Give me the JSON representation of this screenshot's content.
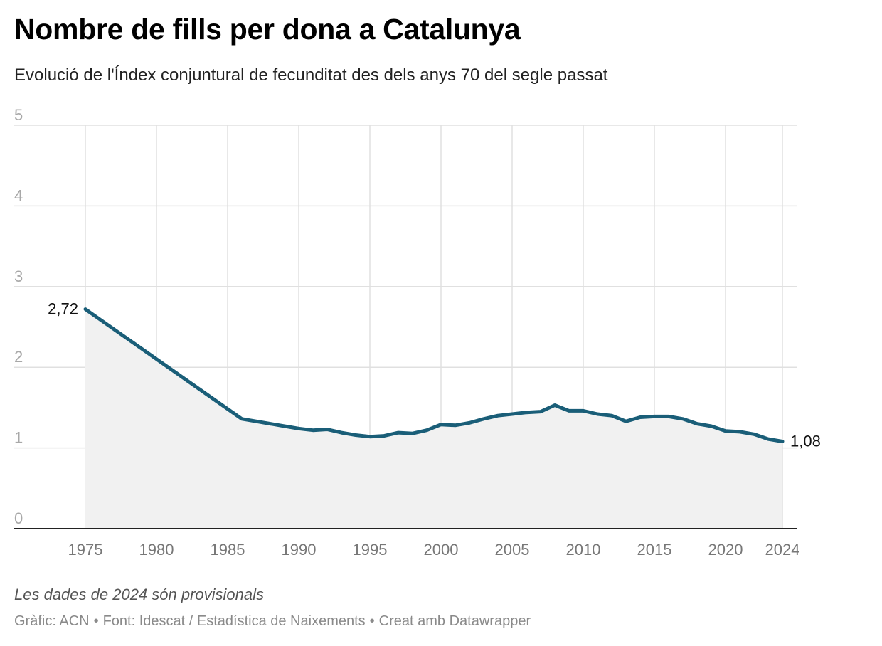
{
  "header": {
    "title": "Nombre de fills per dona a Catalunya",
    "subtitle": "Evolució de l'Índex conjuntural de fecunditat des dels anys 70 del segle passat"
  },
  "footer": {
    "note": "Les dades de 2024 són provisionals",
    "credit": "Gràfic: ACN",
    "source": "Font: Idescat / Estadística de Naixements",
    "tool": "Creat amb Datawrapper",
    "separator": "•"
  },
  "colors": {
    "line": "#1a5e78",
    "area": "#f1f1f1",
    "grid": "#e0e0e0",
    "axis": "#222222",
    "tick_label": "#a8a8a8",
    "x_tick_label": "#777777",
    "data_label": "#111111"
  },
  "chart_data": {
    "type": "area",
    "title": "",
    "xlabel": "",
    "ylabel": "",
    "xlim": [
      1975,
      2024
    ],
    "ylim": [
      0,
      5
    ],
    "grid": true,
    "y_ticks": [
      0,
      1,
      2,
      3,
      4,
      5
    ],
    "y_tick_labels": [
      "0",
      "1",
      "2",
      "3",
      "4",
      "5"
    ],
    "x_ticks": [
      1975,
      1980,
      1985,
      1990,
      1995,
      2000,
      2005,
      2010,
      2015,
      2020,
      2024
    ],
    "x_tick_labels": [
      "1975",
      "1980",
      "1985",
      "1990",
      "1995",
      "2000",
      "2005",
      "2010",
      "2015",
      "2020",
      "2024"
    ],
    "x": [
      1975,
      1986,
      1987,
      1988,
      1989,
      1990,
      1991,
      1992,
      1993,
      1994,
      1995,
      1996,
      1997,
      1998,
      1999,
      2000,
      2001,
      2002,
      2003,
      2004,
      2005,
      2006,
      2007,
      2008,
      2009,
      2010,
      2011,
      2012,
      2013,
      2014,
      2015,
      2016,
      2017,
      2018,
      2019,
      2020,
      2021,
      2022,
      2023,
      2024
    ],
    "series": [
      {
        "values": [
          2.72,
          1.36,
          1.33,
          1.3,
          1.27,
          1.24,
          1.22,
          1.23,
          1.19,
          1.16,
          1.14,
          1.15,
          1.19,
          1.18,
          1.22,
          1.29,
          1.28,
          1.31,
          1.36,
          1.4,
          1.42,
          1.44,
          1.45,
          1.53,
          1.46,
          1.46,
          1.42,
          1.4,
          1.33,
          1.38,
          1.39,
          1.39,
          1.36,
          1.3,
          1.27,
          1.21,
          1.2,
          1.17,
          1.11,
          1.08
        ]
      }
    ],
    "annotations": [
      {
        "x": 1975,
        "y": 2.72,
        "text": "2,72",
        "anchor": "left"
      },
      {
        "x": 2024,
        "y": 1.08,
        "text": "1,08",
        "anchor": "right"
      }
    ]
  }
}
